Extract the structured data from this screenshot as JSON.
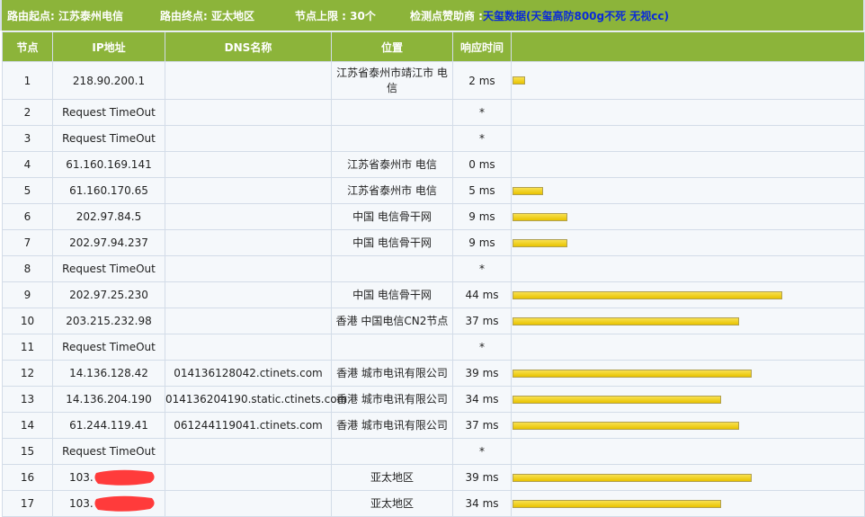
{
  "topbar": {
    "start": "路由起点: 江苏泰州电信",
    "end": "路由终点: 亚太地区",
    "limit": "节点上限 : 30个",
    "sponsor_label": "检测点赞助商 : ",
    "sponsor_name": "天玺数据",
    "sponsor_extra": "(天玺高防800g不死 无视cc)"
  },
  "columns": [
    "节点",
    "IP地址",
    "DNS名称",
    "位置",
    "响应时间",
    ""
  ],
  "ms_scale_max": 44,
  "rows": [
    {
      "hop": "1",
      "ip": "218.90.200.1",
      "dns": "",
      "loc": "江苏省泰州市靖江市 电信",
      "time": "2 ms",
      "ms": 2
    },
    {
      "hop": "2",
      "ip": "Request TimeOut",
      "dns": "",
      "loc": "",
      "time": "*",
      "ms": null
    },
    {
      "hop": "3",
      "ip": "Request TimeOut",
      "dns": "",
      "loc": "",
      "time": "*",
      "ms": null
    },
    {
      "hop": "4",
      "ip": "61.160.169.141",
      "dns": "",
      "loc": "江苏省泰州市 电信",
      "time": "0 ms",
      "ms": 0
    },
    {
      "hop": "5",
      "ip": "61.160.170.65",
      "dns": "",
      "loc": "江苏省泰州市 电信",
      "time": "5 ms",
      "ms": 5
    },
    {
      "hop": "6",
      "ip": "202.97.84.5",
      "dns": "",
      "loc": "中国 电信骨干网",
      "time": "9 ms",
      "ms": 9
    },
    {
      "hop": "7",
      "ip": "202.97.94.237",
      "dns": "",
      "loc": "中国 电信骨干网",
      "time": "9 ms",
      "ms": 9
    },
    {
      "hop": "8",
      "ip": "Request TimeOut",
      "dns": "",
      "loc": "",
      "time": "*",
      "ms": null
    },
    {
      "hop": "9",
      "ip": "202.97.25.230",
      "dns": "",
      "loc": "中国 电信骨干网",
      "time": "44 ms",
      "ms": 44
    },
    {
      "hop": "10",
      "ip": "203.215.232.98",
      "dns": "",
      "loc": "香港 中国电信CN2节点",
      "time": "37 ms",
      "ms": 37
    },
    {
      "hop": "11",
      "ip": "Request TimeOut",
      "dns": "",
      "loc": "",
      "time": "*",
      "ms": null
    },
    {
      "hop": "12",
      "ip": "14.136.128.42",
      "dns": "014136128042.ctinets.com",
      "loc": "香港 城市电讯有限公司",
      "time": "39 ms",
      "ms": 39
    },
    {
      "hop": "13",
      "ip": "14.136.204.190",
      "dns": "014136204190.static.ctinets.com",
      "loc": "香港 城市电讯有限公司",
      "time": "34 ms",
      "ms": 34
    },
    {
      "hop": "14",
      "ip": "61.244.119.41",
      "dns": "061244119041.ctinets.com",
      "loc": "香港 城市电讯有限公司",
      "time": "37 ms",
      "ms": 37
    },
    {
      "hop": "15",
      "ip": "Request TimeOut",
      "dns": "",
      "loc": "",
      "time": "*",
      "ms": null
    },
    {
      "hop": "16",
      "ip": "103.",
      "dns": "",
      "loc": "亚太地区",
      "time": "39 ms",
      "ms": 39,
      "redacted": true
    },
    {
      "hop": "17",
      "ip": "103.",
      "dns": "",
      "loc": "亚太地区",
      "time": "34 ms",
      "ms": 34,
      "redacted": true
    }
  ]
}
